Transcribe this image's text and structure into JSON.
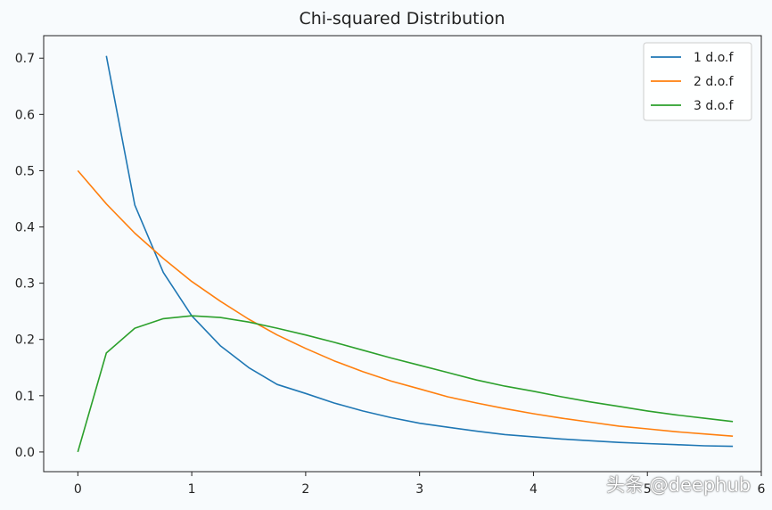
{
  "chart_data": {
    "type": "line",
    "title": "Chi-squared Distribution",
    "xlabel": "",
    "ylabel": "",
    "xlim": [
      -0.3,
      6.0
    ],
    "ylim": [
      -0.035,
      0.74
    ],
    "xticks": [
      0,
      1,
      2,
      3,
      4,
      5,
      6
    ],
    "yticks": [
      0.0,
      0.1,
      0.2,
      0.3,
      0.4,
      0.5,
      0.6,
      0.7
    ],
    "xtick_labels": [
      "0",
      "1",
      "2",
      "3",
      "4",
      "5",
      "6"
    ],
    "ytick_labels": [
      "0.0",
      "0.1",
      "0.2",
      "0.3",
      "0.4",
      "0.5",
      "0.6",
      "0.7"
    ],
    "grid": false,
    "legend_position": "top-right",
    "series": [
      {
        "name": "1 d.o.f",
        "color": "#1f77b4",
        "x": [
          0.25,
          0.5,
          0.75,
          1.0,
          1.25,
          1.5,
          1.75,
          2.0,
          2.25,
          2.5,
          2.75,
          3.0,
          3.25,
          3.5,
          3.75,
          4.0,
          4.25,
          4.5,
          4.75,
          5.0,
          5.25,
          5.5,
          5.75
        ],
        "y": [
          0.704,
          0.439,
          0.319,
          0.242,
          0.189,
          0.15,
          0.12,
          0.104,
          0.087,
          0.073,
          0.061,
          0.051,
          0.044,
          0.037,
          0.031,
          0.027,
          0.023,
          0.02,
          0.017,
          0.015,
          0.013,
          0.011,
          0.01
        ]
      },
      {
        "name": "2 d.o.f",
        "color": "#ff7f0e",
        "x": [
          0,
          0.25,
          0.5,
          0.75,
          1.0,
          1.25,
          1.5,
          1.75,
          2.0,
          2.25,
          2.5,
          2.75,
          3.0,
          3.25,
          3.5,
          3.75,
          4.0,
          4.25,
          4.5,
          4.75,
          5.0,
          5.25,
          5.5,
          5.75
        ],
        "y": [
          0.5,
          0.441,
          0.389,
          0.344,
          0.303,
          0.268,
          0.236,
          0.208,
          0.184,
          0.162,
          0.143,
          0.126,
          0.112,
          0.098,
          0.087,
          0.077,
          0.068,
          0.06,
          0.053,
          0.046,
          0.041,
          0.036,
          0.032,
          0.028
        ]
      },
      {
        "name": "3 d.o.f",
        "color": "#2ca02c",
        "x": [
          0,
          0.25,
          0.5,
          0.75,
          1.0,
          1.25,
          1.5,
          1.75,
          2.0,
          2.25,
          2.5,
          2.75,
          3.0,
          3.25,
          3.5,
          3.75,
          4.0,
          4.25,
          4.5,
          4.75,
          5.0,
          5.25,
          5.5,
          5.75
        ],
        "y": [
          0.0,
          0.176,
          0.22,
          0.237,
          0.242,
          0.239,
          0.231,
          0.22,
          0.208,
          0.195,
          0.181,
          0.167,
          0.154,
          0.141,
          0.128,
          0.117,
          0.108,
          0.098,
          0.089,
          0.081,
          0.073,
          0.066,
          0.06,
          0.054
        ]
      }
    ]
  },
  "watermark": "头条 @deephub"
}
